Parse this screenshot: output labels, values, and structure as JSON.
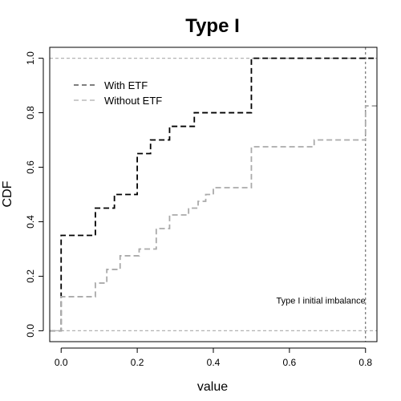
{
  "chart_data": {
    "type": "line",
    "title": "Type I",
    "xlabel": "value",
    "ylabel": "CDF",
    "xlim": [
      -0.03,
      0.83
    ],
    "ylim": [
      -0.04,
      1.04
    ],
    "x_ticks": [
      0.0,
      0.2,
      0.4,
      0.6,
      0.8
    ],
    "x_tick_labels": [
      "0.0",
      "0.2",
      "0.4",
      "0.6",
      "0.8"
    ],
    "y_ticks": [
      0.0,
      0.2,
      0.4,
      0.6,
      0.8,
      1.0
    ],
    "y_tick_labels": [
      "0.0",
      "0.2",
      "0.4",
      "0.6",
      "0.8",
      "1.0"
    ],
    "grid": false,
    "legend_position": "top-left",
    "reference_lines": {
      "horizontal": [
        0,
        1
      ],
      "horizontal_color": "#b3b3b3",
      "vertical": [
        0.8
      ],
      "vertical_color": "#555555"
    },
    "annotation": {
      "text": "Type I initial imbalance",
      "x": 0.8,
      "y": 0.1
    },
    "series": [
      {
        "name": "With ETF",
        "color": "#000000",
        "legend_color": "#555555",
        "steps": [
          [
            -0.03,
            0.0
          ],
          [
            0.0,
            0.35
          ],
          [
            0.09,
            0.45
          ],
          [
            0.14,
            0.5
          ],
          [
            0.2,
            0.65
          ],
          [
            0.235,
            0.7
          ],
          [
            0.285,
            0.75
          ],
          [
            0.35,
            0.8
          ],
          [
            0.5,
            1.0
          ],
          [
            0.83,
            1.0
          ]
        ]
      },
      {
        "name": "Without ETF",
        "color": "#aaaaaa",
        "legend_color": "#bbbbbb",
        "steps": [
          [
            -0.03,
            0.0
          ],
          [
            0.0,
            0.125
          ],
          [
            0.09,
            0.175
          ],
          [
            0.12,
            0.225
          ],
          [
            0.155,
            0.275
          ],
          [
            0.205,
            0.3
          ],
          [
            0.25,
            0.375
          ],
          [
            0.285,
            0.425
          ],
          [
            0.335,
            0.45
          ],
          [
            0.36,
            0.475
          ],
          [
            0.38,
            0.5
          ],
          [
            0.4,
            0.525
          ],
          [
            0.5,
            0.675
          ],
          [
            0.665,
            0.7
          ],
          [
            0.8,
            0.825
          ],
          [
            0.83,
            0.825
          ]
        ]
      }
    ]
  }
}
